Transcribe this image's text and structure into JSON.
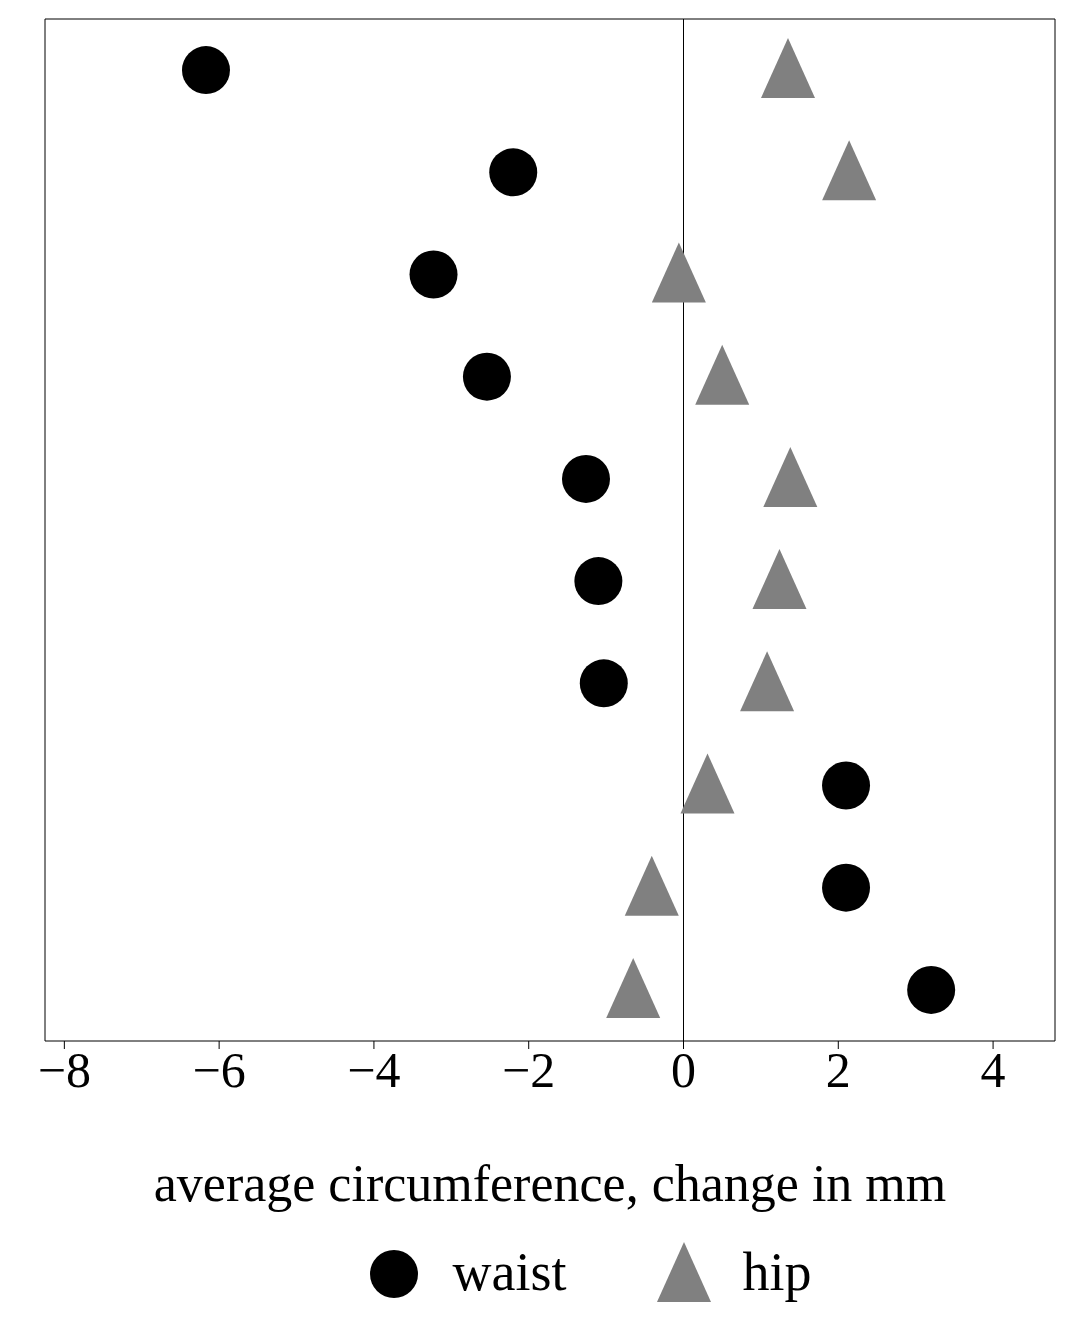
{
  "chart_data": {
    "type": "scatter",
    "orientation": "horizontal",
    "xlabel": "average circumference, change in mm",
    "categories": [
      null,
      null,
      null,
      null,
      null,
      null,
      null,
      null,
      null,
      null
    ],
    "series": [
      {
        "name": "waist",
        "color": "#000000",
        "marker": "circle",
        "values": [
          -6.17,
          -2.2,
          -3.23,
          -2.54,
          -1.26,
          -1.1,
          -1.03,
          2.1,
          2.1,
          3.2
        ]
      },
      {
        "name": "hip",
        "color": "#808080",
        "marker": "triangle",
        "values": [
          1.35,
          2.14,
          -0.06,
          0.5,
          1.38,
          1.24,
          1.08,
          0.31,
          -0.41,
          -0.65
        ]
      }
    ],
    "xlim": [
      -8.25,
      4.8
    ],
    "xticks": [
      {
        "value": -8,
        "label": "−8"
      },
      {
        "value": -6,
        "label": "−6"
      },
      {
        "value": -4,
        "label": "−4"
      },
      {
        "value": -2,
        "label": "−2"
      },
      0,
      2,
      4
    ],
    "ref_lines": [
      {
        "axis": "x",
        "value": 0,
        "color": "#000000"
      }
    ],
    "tick_labels": "x",
    "grid": false,
    "legend": "bottom"
  }
}
